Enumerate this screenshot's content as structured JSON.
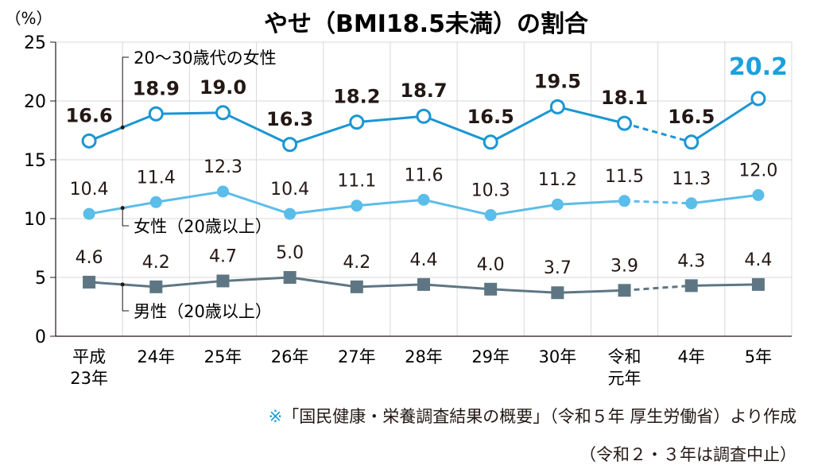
{
  "chart_data": {
    "type": "line",
    "title": "やせ（BMI18.5未満）の割合",
    "ylabel": "（%）",
    "ylim": [
      0,
      25
    ],
    "yticks": [
      "0",
      "5",
      "10",
      "15",
      "20",
      "25"
    ],
    "categories": [
      [
        "平成",
        "23年"
      ],
      [
        "24年"
      ],
      [
        "25年"
      ],
      [
        "26年"
      ],
      [
        "27年"
      ],
      [
        "28年"
      ],
      [
        "29年"
      ],
      [
        "30年"
      ],
      [
        "令和",
        "元年"
      ],
      [
        "4年"
      ],
      [
        "5年"
      ]
    ],
    "grid": true,
    "gap_between": [
      8,
      9
    ],
    "series": [
      {
        "name": "20〜30歳代の女性",
        "color": "#1a96d4",
        "marker": "circle-open",
        "values": [
          16.6,
          18.9,
          19.0,
          16.3,
          18.2,
          18.7,
          16.5,
          19.5,
          18.1,
          16.5,
          20.2
        ],
        "labels": [
          "16.6",
          "18.9",
          "19.0",
          "16.3",
          "18.2",
          "18.7",
          "16.5",
          "19.5",
          "18.1",
          "16.5",
          "20.2"
        ]
      },
      {
        "name": "女性（20歳以上）",
        "color": "#5bbde9",
        "marker": "circle-filled",
        "values": [
          10.4,
          11.4,
          12.3,
          10.4,
          11.1,
          11.6,
          10.3,
          11.2,
          11.5,
          11.3,
          12.0
        ],
        "labels": [
          "10.4",
          "11.4",
          "12.3",
          "10.4",
          "11.1",
          "11.6",
          "10.3",
          "11.2",
          "11.5",
          "11.3",
          "12.0"
        ]
      },
      {
        "name": "男性（20歳以上）",
        "color": "#5e7683",
        "marker": "square",
        "values": [
          4.6,
          4.2,
          4.7,
          5.0,
          4.2,
          4.4,
          4.0,
          3.7,
          3.9,
          4.3,
          4.4
        ],
        "labels": [
          "4.6",
          "4.2",
          "4.7",
          "5.0",
          "4.2",
          "4.4",
          "4.0",
          "3.7",
          "3.9",
          "4.3",
          "4.4"
        ]
      }
    ],
    "highlight_color": "#1aa0dc"
  },
  "notes": {
    "mark": "※",
    "source": "「国民健康・栄養調査結果の概要」（令和５年 厚生労働省）より作成",
    "suspension": "（令和２・３年は調査中止）"
  }
}
